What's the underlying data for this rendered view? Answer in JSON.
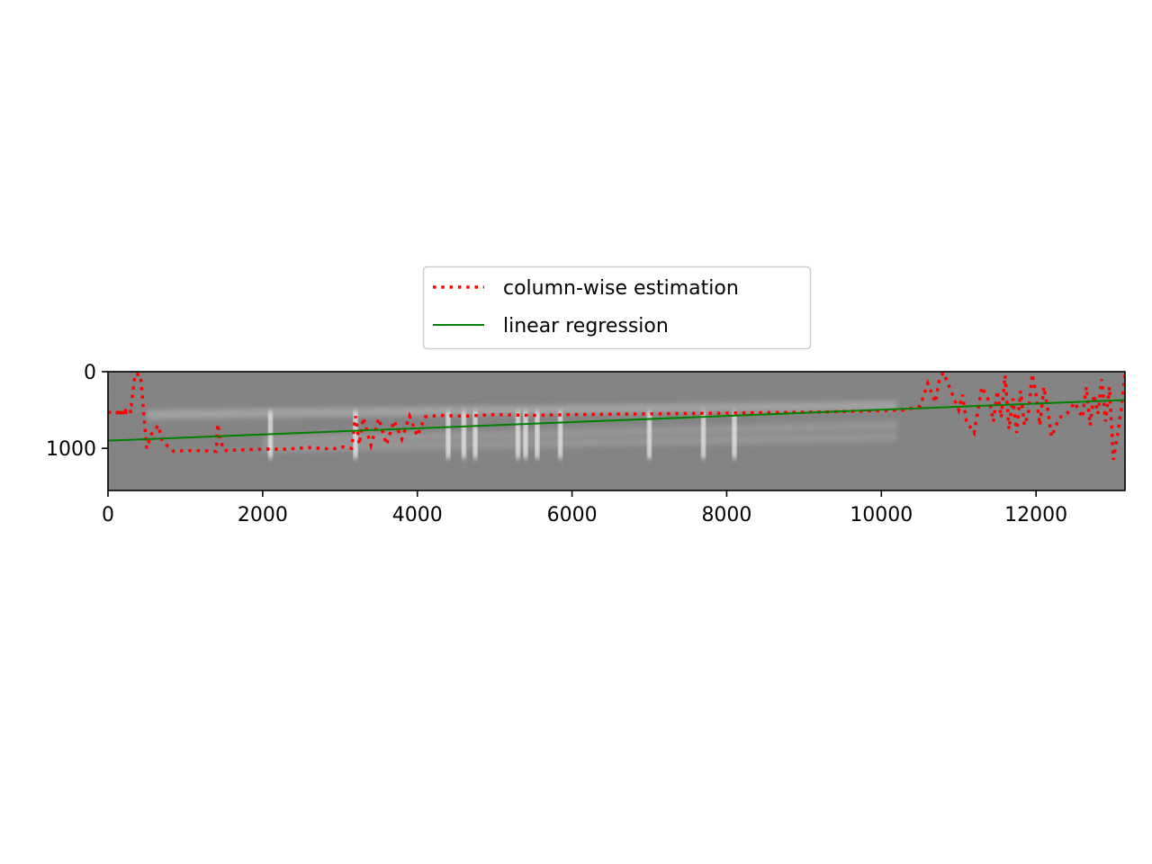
{
  "chart_data": {
    "type": "line",
    "background": "grayscale-spectrogram-image",
    "xlim": [
      0,
      13150
    ],
    "ylim": [
      1550,
      0
    ],
    "y_inverted": true,
    "x_ticks": [
      0,
      2000,
      4000,
      6000,
      8000,
      10000,
      12000
    ],
    "y_ticks": [
      0,
      1000
    ],
    "x_tick_labels": [
      "0",
      "2000",
      "4000",
      "6000",
      "8000",
      "10000",
      "12000"
    ],
    "y_tick_labels": [
      "0",
      "1000"
    ],
    "grid": false,
    "legend_position": "top-center",
    "series": [
      {
        "name": "column-wise estimation",
        "color": "#ff0000",
        "style": "dotted",
        "x": [
          0,
          200,
          300,
          350,
          420,
          500,
          560,
          650,
          700,
          750,
          850,
          1000,
          1200,
          1400,
          1420,
          1450,
          1500,
          1700,
          2000,
          2300,
          2600,
          2900,
          3050,
          3150,
          3200,
          3250,
          3300,
          3400,
          3500,
          3600,
          3700,
          3800,
          3900,
          4000,
          4100,
          4300,
          4600,
          5000,
          5500,
          6000,
          7000,
          8000,
          9000,
          9500,
          10000,
          10300,
          10500,
          10600,
          10700,
          10750,
          10800,
          10900,
          11000,
          11050,
          11100,
          11200,
          11300,
          11400,
          11450,
          11500,
          11550,
          11600,
          11650,
          11700,
          11750,
          11800,
          11850,
          11900,
          11950,
          12000,
          12050,
          12100,
          12150,
          12200,
          12300,
          12400,
          12500,
          12600,
          12650,
          12700,
          12750,
          12800,
          12850,
          12900,
          12950,
          13000,
          13050,
          13100,
          13150
        ],
        "values": [
          530,
          530,
          440,
          30,
          40,
          1000,
          820,
          700,
          900,
          950,
          1040,
          1030,
          1030,
          1040,
          680,
          880,
          1030,
          1020,
          1010,
          1010,
          990,
          1010,
          980,
          1000,
          580,
          950,
          600,
          960,
          610,
          950,
          640,
          880,
          580,
          840,
          590,
          570,
          580,
          560,
          570,
          560,
          550,
          540,
          530,
          520,
          510,
          500,
          450,
          150,
          400,
          100,
          10,
          250,
          500,
          300,
          650,
          800,
          200,
          400,
          650,
          250,
          600,
          50,
          750,
          350,
          800,
          250,
          700,
          550,
          30,
          300,
          700,
          200,
          480,
          850,
          600,
          550,
          400,
          600,
          200,
          700,
          300,
          550,
          100,
          650,
          200,
          1150,
          850,
          500,
          20
        ],
        "dots": [
          [
            120,
            535
          ],
          [
            162,
            535
          ],
          [
            190,
            535
          ],
          [
            230,
            535
          ],
          [
            290,
            520
          ]
        ]
      },
      {
        "name": "linear regression",
        "color": "#008000",
        "style": "solid",
        "x": [
          0,
          13150
        ],
        "values": [
          900,
          370
        ]
      }
    ],
    "image_features": {
      "bright_lines_x": [
        2100,
        3200,
        4400,
        4600,
        4750,
        5300,
        5400,
        5550,
        5850,
        7000,
        7700,
        8100
      ],
      "trace_bands": [
        {
          "x0": 500,
          "x1": 10200,
          "y_start": 560,
          "y_end": 440
        },
        {
          "x0": 2000,
          "x1": 10200,
          "y_start": 900,
          "y_end": 700
        },
        {
          "x0": 2000,
          "x1": 10200,
          "y_start": 1000,
          "y_end": 850
        }
      ]
    }
  }
}
